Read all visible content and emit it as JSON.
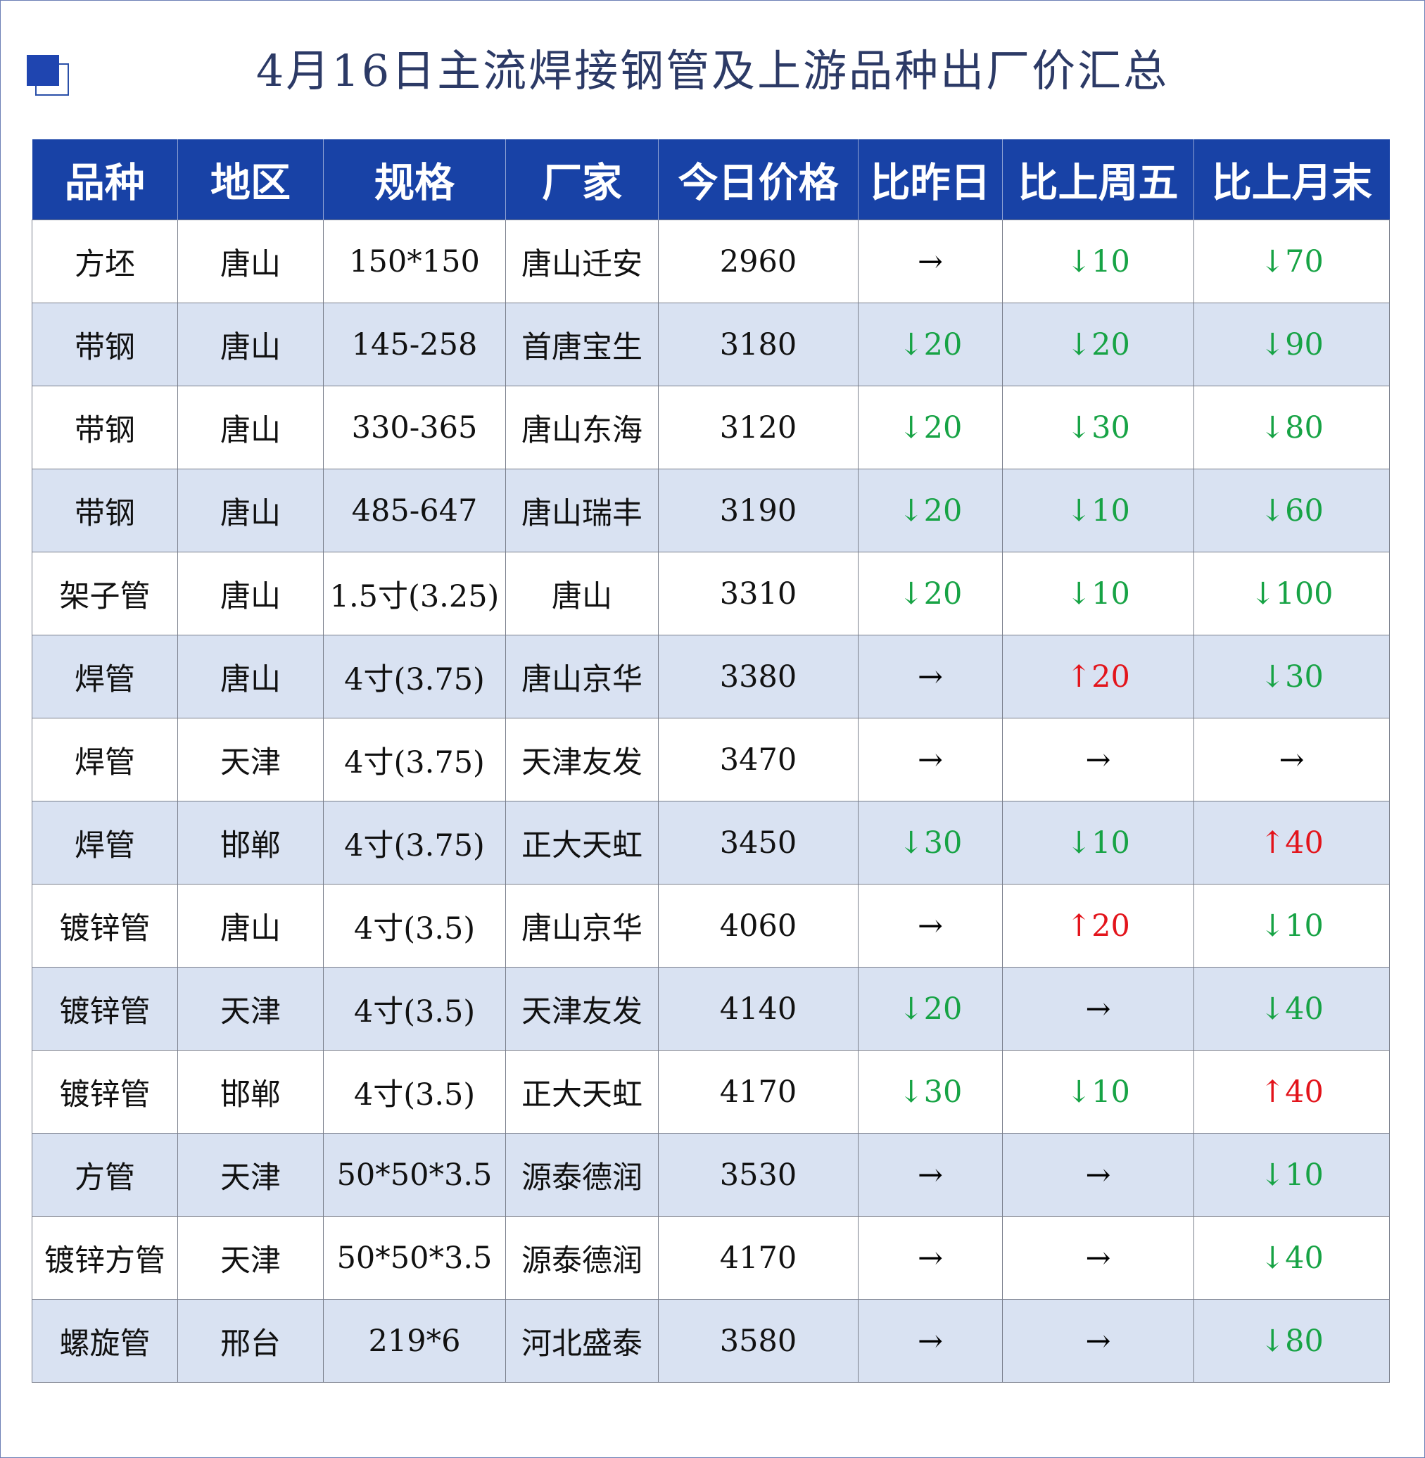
{
  "title": "4月16日主流焊接钢管及上游品种出厂价汇总",
  "colors": {
    "header_bg": "#1842a6",
    "alt_row": "#d9e2f2",
    "down": "#17a345",
    "up": "#e3141b"
  },
  "table": {
    "headers": [
      "品种",
      "地区",
      "规格",
      "厂家",
      "今日价格",
      "比昨日",
      "比上周五",
      "比上月末"
    ],
    "rows": [
      [
        "方坯",
        "唐山",
        "150*150",
        "唐山迁安",
        "2960",
        "→",
        "↓10",
        "↓70"
      ],
      [
        "带钢",
        "唐山",
        "145-258",
        "首唐宝生",
        "3180",
        "↓20",
        "↓20",
        "↓90"
      ],
      [
        "带钢",
        "唐山",
        "330-365",
        "唐山东海",
        "3120",
        "↓20",
        "↓30",
        "↓80"
      ],
      [
        "带钢",
        "唐山",
        "485-647",
        "唐山瑞丰",
        "3190",
        "↓20",
        "↓10",
        "↓60"
      ],
      [
        "架子管",
        "唐山",
        "1.5寸(3.25)",
        "唐山",
        "3310",
        "↓20",
        "↓10",
        "↓100"
      ],
      [
        "焊管",
        "唐山",
        "4寸(3.75)",
        "唐山京华",
        "3380",
        "→",
        "↑20",
        "↓30"
      ],
      [
        "焊管",
        "天津",
        "4寸(3.75)",
        "天津友发",
        "3470",
        "→",
        "→",
        "→"
      ],
      [
        "焊管",
        "邯郸",
        "4寸(3.75)",
        "正大天虹",
        "3450",
        "↓30",
        "↓10",
        "↑40"
      ],
      [
        "镀锌管",
        "唐山",
        "4寸(3.5)",
        "唐山京华",
        "4060",
        "→",
        "↑20",
        "↓10"
      ],
      [
        "镀锌管",
        "天津",
        "4寸(3.5)",
        "天津友发",
        "4140",
        "↓20",
        "→",
        "↓40"
      ],
      [
        "镀锌管",
        "邯郸",
        "4寸(3.5)",
        "正大天虹",
        "4170",
        "↓30",
        "↓10",
        "↑40"
      ],
      [
        "方管",
        "天津",
        "50*50*3.5",
        "源泰德润",
        "3530",
        "→",
        "→",
        "↓10"
      ],
      [
        "镀锌方管",
        "天津",
        "50*50*3.5",
        "源泰德润",
        "4170",
        "→",
        "→",
        "↓40"
      ],
      [
        "螺旋管",
        "邢台",
        "219*6",
        "河北盛泰",
        "3580",
        "→",
        "→",
        "↓80"
      ]
    ]
  }
}
